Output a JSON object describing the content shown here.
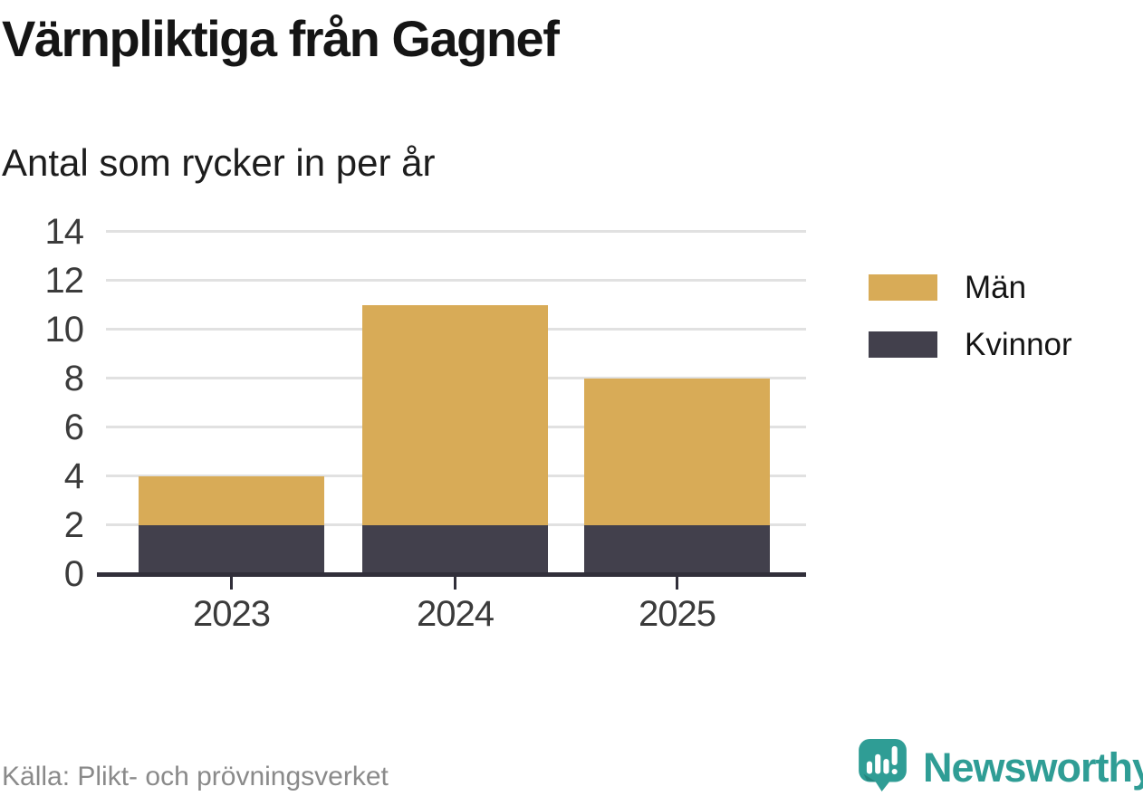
{
  "header": {
    "title": "Värnpliktiga från Gagnef",
    "subtitle": "Antal som rycker in per år"
  },
  "chart_data": {
    "type": "bar",
    "stacked": true,
    "title": "Värnpliktiga från Gagnef",
    "subtitle": "Antal som rycker in per år",
    "categories": [
      "2023",
      "2024",
      "2025"
    ],
    "series": [
      {
        "name": "Män",
        "color": "#d8ab57",
        "values": [
          2,
          9,
          6
        ]
      },
      {
        "name": "Kvinnor",
        "color": "#42404c",
        "values": [
          2,
          2,
          2
        ]
      }
    ],
    "stack_from_bottom": [
      "Kvinnor",
      "Män"
    ],
    "stack_totals": [
      4,
      11,
      8
    ],
    "ylim": [
      0,
      14
    ],
    "yticks": [
      0,
      2,
      4,
      6,
      8,
      10,
      12,
      14
    ],
    "xlabel": "",
    "ylabel": "",
    "grid": true,
    "legend_position": "right"
  },
  "legend": {
    "items": [
      {
        "label": "Män",
        "color": "#d8ab57"
      },
      {
        "label": "Kvinnor",
        "color": "#42404c"
      }
    ]
  },
  "footer": {
    "source": "Källa: Plikt- och prövningsverket",
    "brand": "Newsworthy"
  },
  "colors": {
    "men": "#d8ab57",
    "women": "#42404c",
    "gridline": "#e1e1e1",
    "axis": "#312f3a",
    "tick_text": "#3b3b3b",
    "source_text": "#8a8a8a",
    "brand_teal": "#2f9d95"
  }
}
